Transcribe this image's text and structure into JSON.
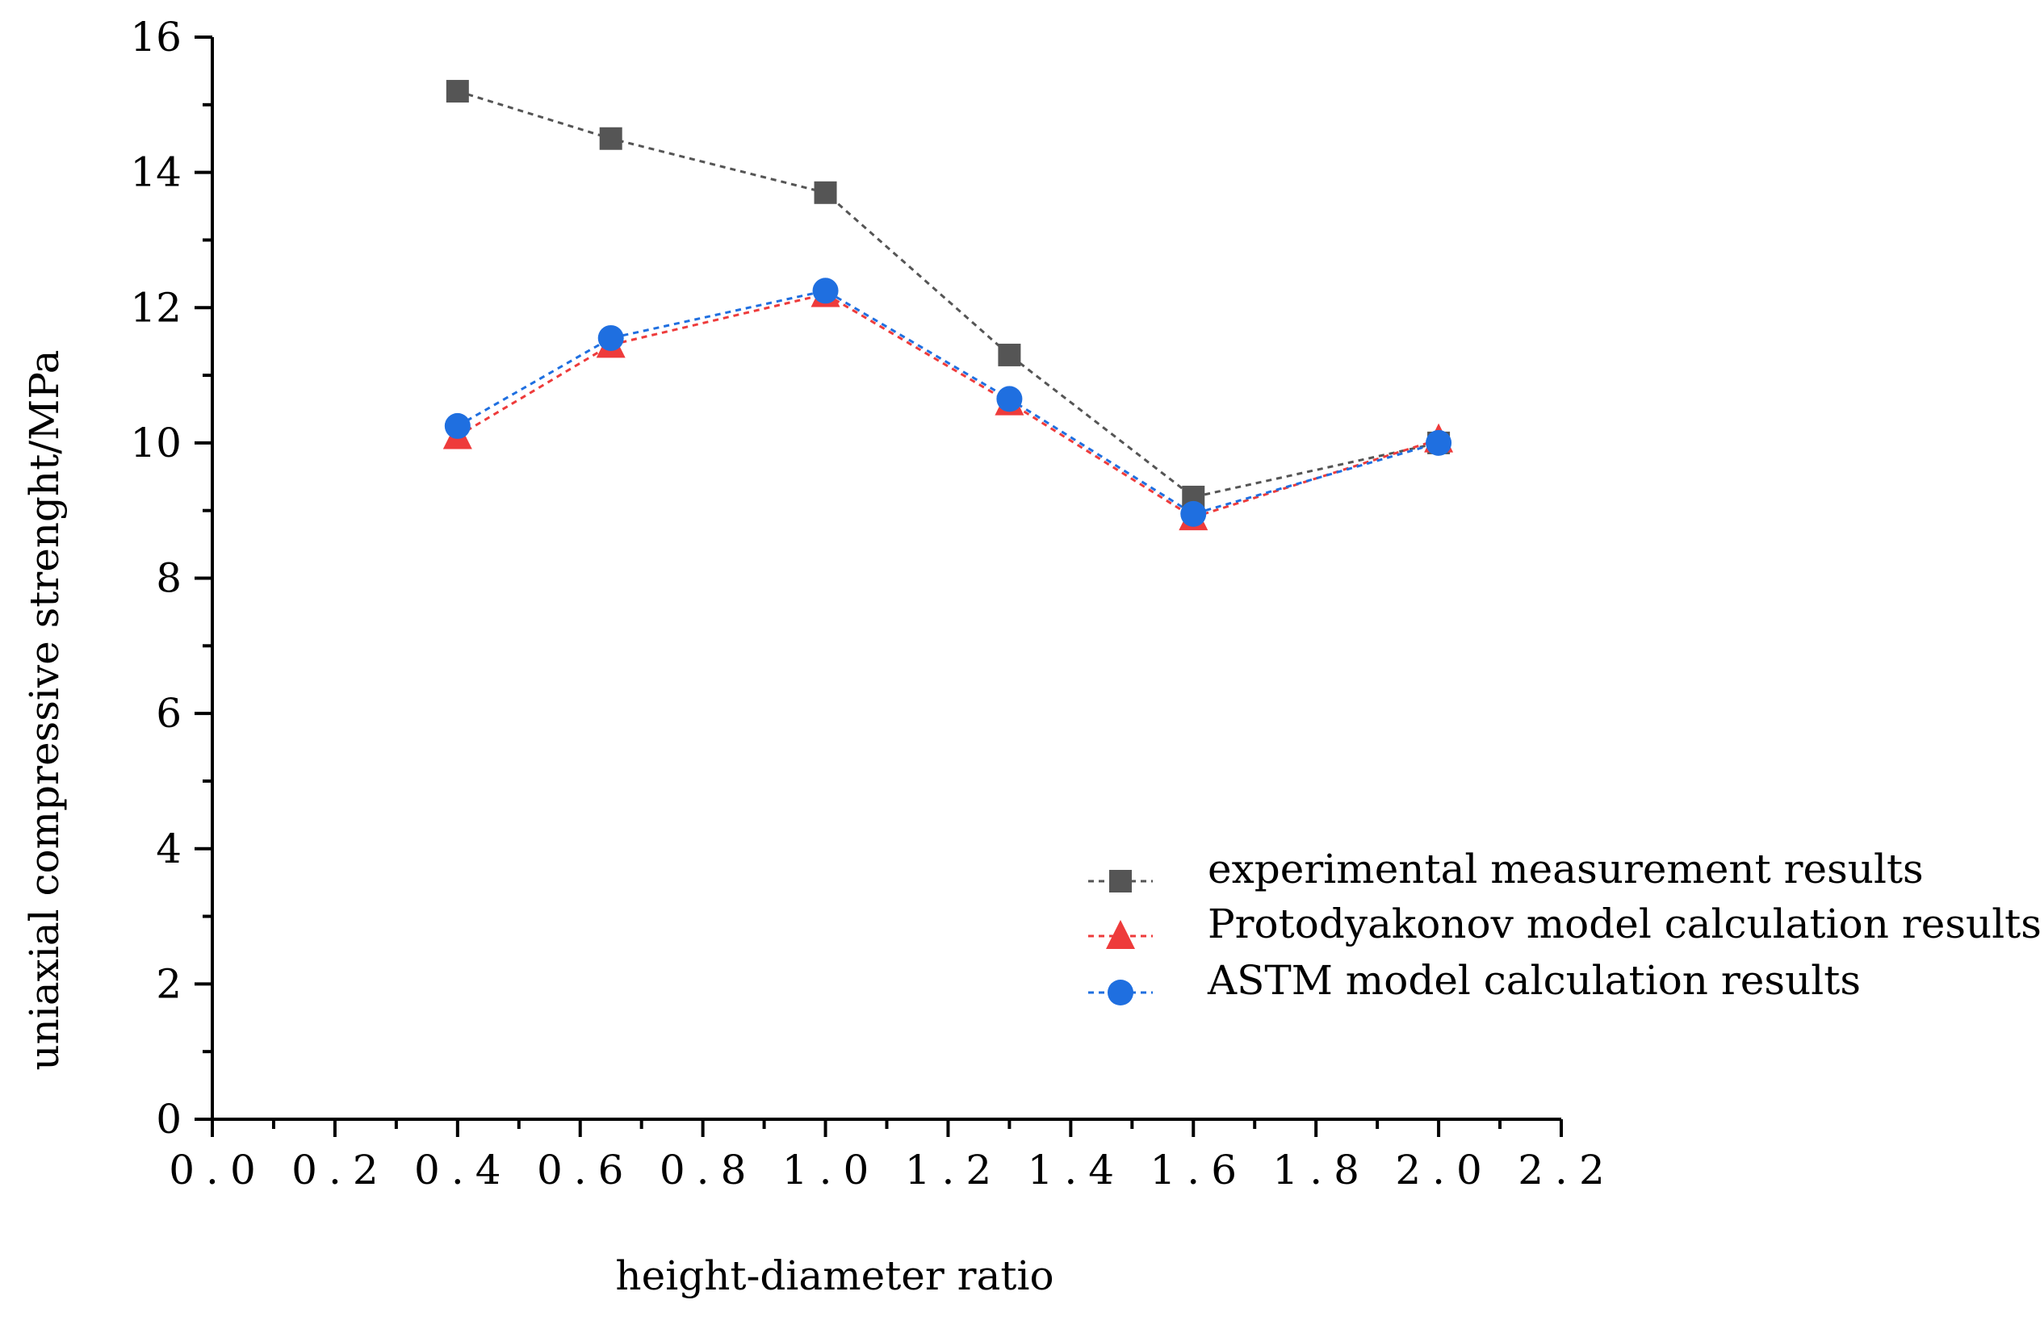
{
  "chart_data": {
    "type": "line",
    "title": "",
    "xlabel": "height-diameter ratio",
    "ylabel": "uniaxial compressive strenght/MPa",
    "xlim": [
      0.0,
      2.2
    ],
    "ylim": [
      0,
      16
    ],
    "x_ticks": [
      "0.0",
      "0.2",
      "0.4",
      "0.6",
      "0.8",
      "1.0",
      "1.2",
      "1.4",
      "1.6",
      "1.8",
      "2.0",
      "2.2"
    ],
    "y_ticks": [
      "0",
      "2",
      "4",
      "6",
      "8",
      "10",
      "12",
      "14",
      "16"
    ],
    "x": [
      0.4,
      0.65,
      1.0,
      1.3,
      1.6,
      2.0
    ],
    "grid": false,
    "legend_position": "bottom-right",
    "series": [
      {
        "name": "experimental measurement results",
        "values": [
          15.2,
          14.5,
          13.7,
          11.3,
          9.2,
          10.0
        ],
        "color": "#555555",
        "marker": "square"
      },
      {
        "name": "Protodyakonov model calculation results",
        "values": [
          10.1,
          11.45,
          12.2,
          10.6,
          8.9,
          10.05
        ],
        "color": "#ee3b3b",
        "marker": "triangle"
      },
      {
        "name": "ASTM model calculation results",
        "values": [
          10.25,
          11.55,
          12.25,
          10.65,
          8.95,
          10.0
        ],
        "color": "#1f6fe0",
        "marker": "circle"
      }
    ]
  }
}
